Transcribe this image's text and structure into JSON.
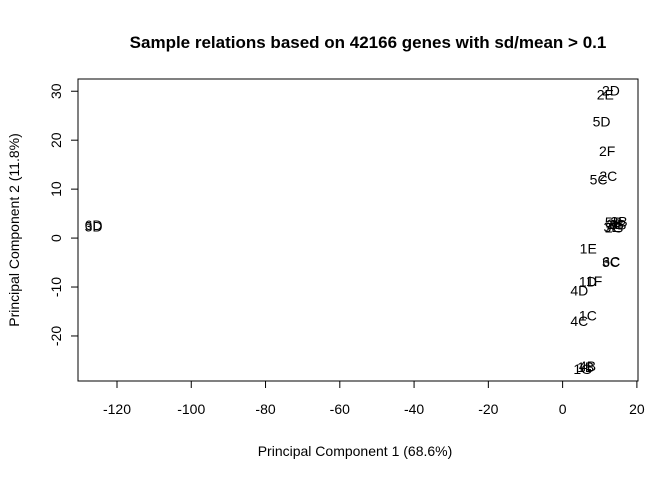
{
  "chart_data": {
    "type": "scatter",
    "title": "Sample relations based on 42166 genes with sd/mean > 0.1",
    "xlabel": "Principal Component 1 (68.6%)",
    "ylabel": "Principal Component 2 (11.8%)",
    "xlim": [
      -130.5,
      20.3
    ],
    "ylim": [
      -29.2,
      32.5
    ],
    "grid": false,
    "legend": "none",
    "x_ticks": [
      -120,
      -100,
      -80,
      -60,
      -40,
      -20,
      0,
      20
    ],
    "y_ticks": [
      -20,
      -10,
      0,
      10,
      20,
      30
    ],
    "points": [
      {
        "label": "2D",
        "x": 13.0,
        "y": 30.1
      },
      {
        "label": "2E",
        "x": 11.5,
        "y": 29.3
      },
      {
        "label": "5D",
        "x": 10.5,
        "y": 23.8
      },
      {
        "label": "2F",
        "x": 12.0,
        "y": 17.8
      },
      {
        "label": "2C",
        "x": 12.3,
        "y": 12.7
      },
      {
        "label": "5C",
        "x": 9.7,
        "y": 12.0
      },
      {
        "label": "6D",
        "x": -126.3,
        "y": 2.7
      },
      {
        "label": "3D",
        "x": -126.3,
        "y": 2.4
      },
      {
        "label": "3B",
        "x": 15.2,
        "y": 3.4
      },
      {
        "label": "5B",
        "x": 13.7,
        "y": 3.3
      },
      {
        "label": "2B",
        "x": 14.2,
        "y": 2.9
      },
      {
        "label": "6B",
        "x": 14.9,
        "y": 2.8
      },
      {
        "label": "3E",
        "x": 13.3,
        "y": 2.3
      },
      {
        "label": "2G",
        "x": 13.9,
        "y": 2.2
      },
      {
        "label": "1E",
        "x": 6.9,
        "y": -2.1
      },
      {
        "label": "6C",
        "x": 13.1,
        "y": -4.8
      },
      {
        "label": "3C",
        "x": 13.0,
        "y": -4.9
      },
      {
        "label": "1F",
        "x": 8.5,
        "y": -8.8
      },
      {
        "label": "1D",
        "x": 6.8,
        "y": -8.9
      },
      {
        "label": "4D",
        "x": 4.5,
        "y": -10.7
      },
      {
        "label": "1C",
        "x": 6.8,
        "y": -15.8
      },
      {
        "label": "4C",
        "x": 4.5,
        "y": -16.9
      },
      {
        "label": "4B",
        "x": 6.7,
        "y": -26.1
      },
      {
        "label": "1B",
        "x": 6.2,
        "y": -26.3
      },
      {
        "label": "1G",
        "x": 5.4,
        "y": -26.7
      }
    ]
  }
}
